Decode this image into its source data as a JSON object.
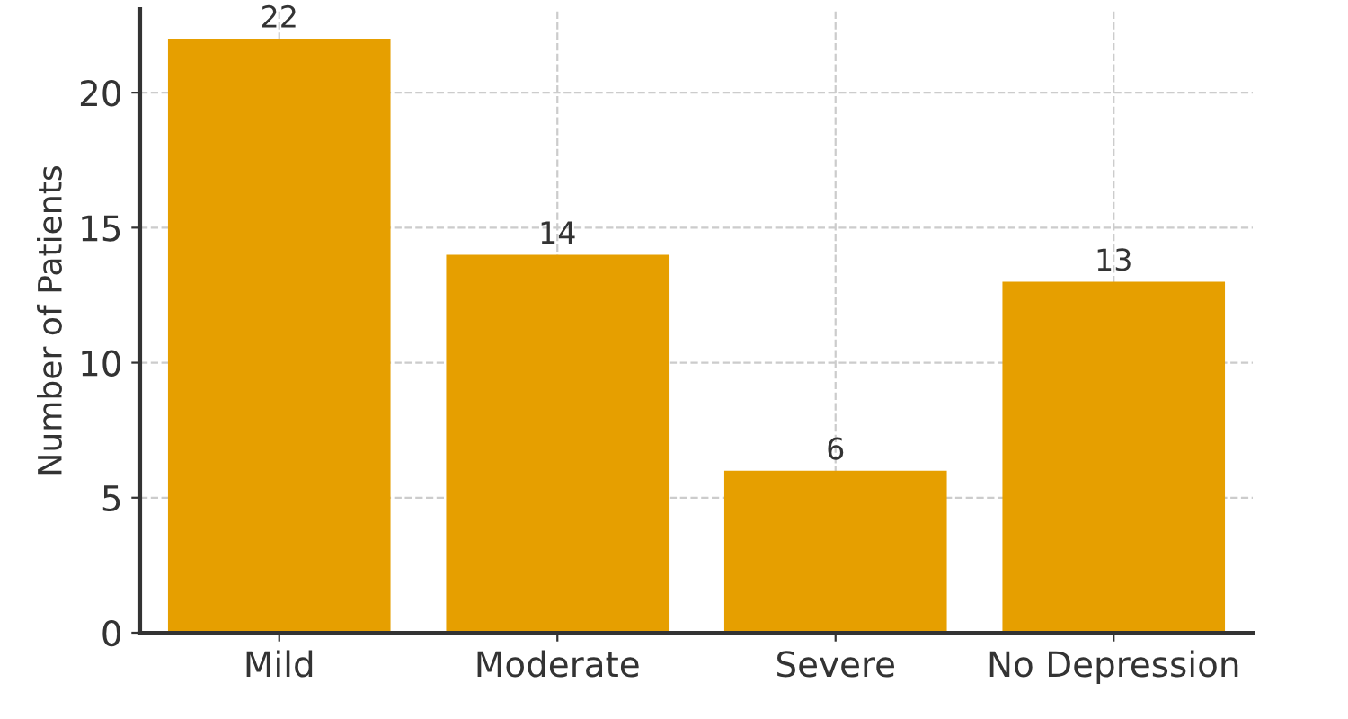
{
  "chart_data": {
    "type": "bar",
    "ylabel": "Number of Patients",
    "categories": [
      "Mild",
      "Moderate",
      "Severe",
      "No Depression"
    ],
    "values": [
      22,
      14,
      6,
      13
    ],
    "color": "#e69f00",
    "ylim": [
      0,
      23.1
    ],
    "yticks": [
      0,
      5,
      10,
      15,
      20
    ],
    "grid": true,
    "data_labels": true
  }
}
